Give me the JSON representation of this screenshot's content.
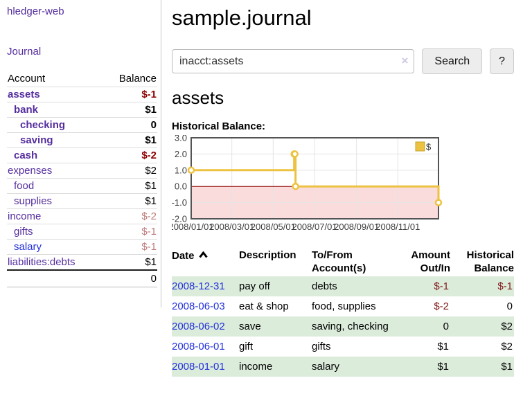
{
  "sidebar": {
    "app_title": "hledger-web",
    "nav_journal": "Journal",
    "header": {
      "account": "Account",
      "balance": "Balance"
    },
    "accounts": [
      {
        "name": "assets",
        "balance": "$-1",
        "depth": 1,
        "bold": true,
        "neg": "strong"
      },
      {
        "name": "bank",
        "balance": "$1",
        "depth": 2,
        "bold": true
      },
      {
        "name": "checking",
        "balance": "0",
        "depth": 3,
        "bold": true
      },
      {
        "name": "saving",
        "balance": "$1",
        "depth": 3,
        "bold": true
      },
      {
        "name": "cash",
        "balance": "$-2",
        "depth": 2,
        "bold": true,
        "neg": "strong"
      },
      {
        "name": "expenses",
        "balance": "$2",
        "depth": 1
      },
      {
        "name": "food",
        "balance": "$1",
        "depth": 2
      },
      {
        "name": "supplies",
        "balance": "$1",
        "depth": 2
      },
      {
        "name": "income",
        "balance": "$-2",
        "depth": 1,
        "neg": "soft"
      },
      {
        "name": "gifts",
        "balance": "$-1",
        "depth": 2,
        "neg": "soft"
      },
      {
        "name": "salary",
        "balance": "$-1",
        "depth": 2,
        "neg": "soft",
        "link": "blue"
      },
      {
        "name": "liabilities:debts",
        "balance": "$1",
        "depth": 1
      }
    ],
    "total": "0"
  },
  "header": {
    "title": "sample.journal"
  },
  "search": {
    "value": "inacct:assets",
    "clear_icon": "×",
    "button": "Search",
    "help": "?"
  },
  "account_page": {
    "title": "assets",
    "chart_label": "Historical Balance:"
  },
  "chart_data": {
    "type": "line",
    "step": true,
    "title": "Historical Balance",
    "legend": "$",
    "legend_position": "top-right",
    "grid": true,
    "xlim": [
      "2008-01-01",
      "2008-12-31"
    ],
    "ylim": [
      -2,
      3
    ],
    "y_ticks": [
      3.0,
      2.0,
      1.0,
      0.0,
      -1.0,
      -2.0
    ],
    "x_ticks": [
      "2008/01/01",
      "2008/03/01",
      "2008/05/01",
      "2008/07/01",
      "2008/09/01",
      "2008/11/01"
    ],
    "series": [
      {
        "name": "$",
        "color": "#edc240",
        "points": [
          [
            "2008-01-01",
            1
          ],
          [
            "2008-06-01",
            2
          ],
          [
            "2008-06-02",
            2
          ],
          [
            "2008-06-03",
            0
          ],
          [
            "2008-12-31",
            -1
          ]
        ]
      }
    ],
    "below_zero_fill": "#fbdcdc",
    "zero_line_color": "#8b0000"
  },
  "register": {
    "headers": {
      "date": "Date",
      "description": "Description",
      "accounts": "To/From Account(s)",
      "amount": "Amount Out/In",
      "balance": "Historical Balance"
    },
    "rows": [
      {
        "date": "2008-12-31",
        "description": "pay off",
        "accounts": "debts",
        "amount": "$-1",
        "balance": "$-1"
      },
      {
        "date": "2008-06-03",
        "description": "eat & shop",
        "accounts": "food, supplies",
        "amount": "$-2",
        "balance": "0"
      },
      {
        "date": "2008-06-02",
        "description": "save",
        "accounts": "saving, checking",
        "amount": "0",
        "balance": "$2"
      },
      {
        "date": "2008-06-01",
        "description": "gift",
        "accounts": "gifts",
        "amount": "$1",
        "balance": "$2"
      },
      {
        "date": "2008-01-01",
        "description": "income",
        "accounts": "salary",
        "amount": "$1",
        "balance": "$1"
      }
    ]
  }
}
